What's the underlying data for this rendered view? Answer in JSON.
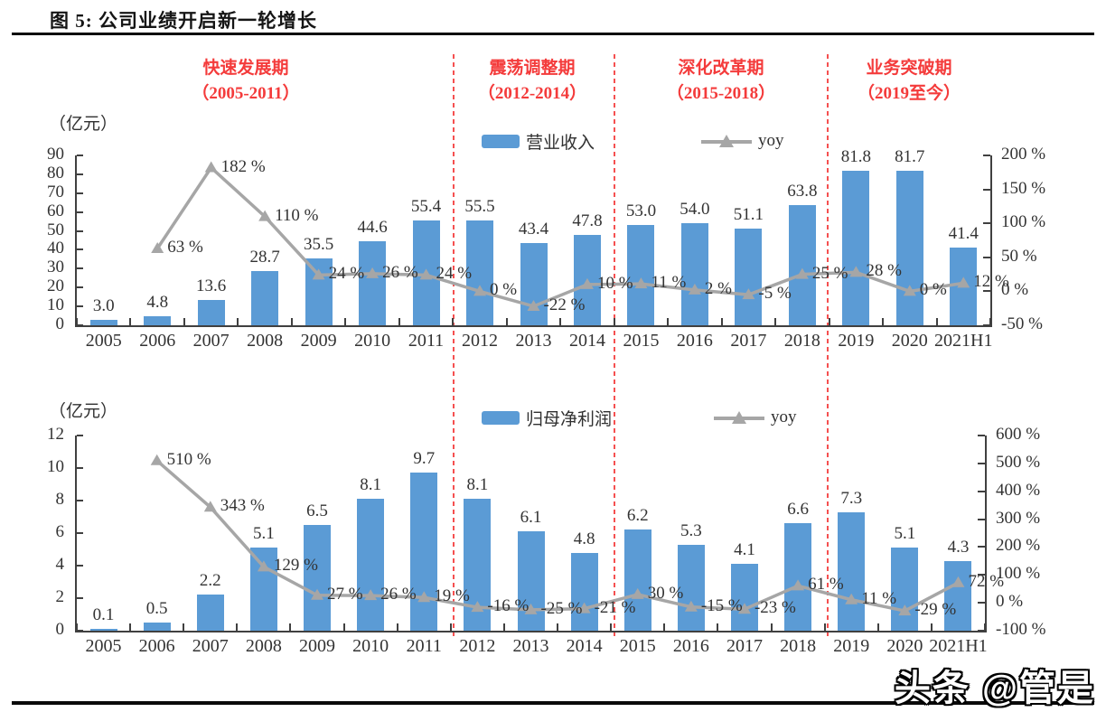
{
  "page": {
    "title": "图 5: 公司业绩开启新一轮增长",
    "watermark": "头条 @管是"
  },
  "phases": [
    {
      "name": "快速发展期",
      "range": "（2005-2011）"
    },
    {
      "name": "震荡调整期",
      "range": "（2012-2014）"
    },
    {
      "name": "深化改革期",
      "range": "（2015-2018）"
    },
    {
      "name": "业务突破期",
      "range": "（2019至今）"
    }
  ],
  "colors": {
    "bar": "#5B9BD5",
    "line": "#A6A6A6",
    "phase_red": "#F43B3B",
    "axis": "#404040",
    "label_text": "#333333"
  },
  "chart_data": [
    {
      "id": "revenue-chart",
      "type": "bar",
      "unit_label": "（亿元）",
      "categories": [
        "2005",
        "2006",
        "2007",
        "2008",
        "2009",
        "2010",
        "2011",
        "2012",
        "2013",
        "2014",
        "2015",
        "2016",
        "2017",
        "2018",
        "2019",
        "2020",
        "2021H1"
      ],
      "series": [
        {
          "name": "营业收入",
          "type": "bar",
          "values": [
            3.0,
            4.8,
            13.6,
            28.7,
            35.5,
            44.6,
            55.4,
            55.5,
            43.4,
            47.8,
            53.0,
            54.0,
            51.1,
            63.8,
            81.8,
            81.7,
            41.4
          ],
          "labels": [
            "3.0",
            "4.8",
            "13.6",
            "28.7",
            "35.5",
            "44.6",
            "55.4",
            "55.5",
            "43.4",
            "47.8",
            "53.0",
            "54.0",
            "51.1",
            "63.8",
            "81.8",
            "81.7",
            "41.4"
          ]
        },
        {
          "name": "yoy",
          "type": "line",
          "values_pct": [
            null,
            63,
            182,
            110,
            24,
            26,
            24,
            0,
            -22,
            10,
            11,
            2,
            -5,
            25,
            28,
            0,
            12
          ],
          "labels": [
            "",
            "63 %",
            "182 %",
            "110 %",
            "24 %",
            "26 %",
            "24 %",
            "0 %",
            "-22 %",
            "10 %",
            "11 %",
            "2 %",
            "-5 %",
            "25 %",
            "28 %",
            "0 %",
            "12 %"
          ]
        }
      ],
      "left_axis": {
        "min": 0,
        "max": 90,
        "ticks": [
          0,
          10,
          20,
          30,
          40,
          50,
          60,
          70,
          80,
          90
        ]
      },
      "right_axis": {
        "min": -50,
        "max": 200,
        "tick_labels": [
          "200 %",
          "150 %",
          "100 %",
          "50 %",
          "0 %",
          "-50 %"
        ]
      },
      "grid": false,
      "legend_position": "top-center"
    },
    {
      "id": "net-profit-chart",
      "type": "bar",
      "unit_label": "（亿元）",
      "categories": [
        "2005",
        "2006",
        "2007",
        "2008",
        "2009",
        "2010",
        "2011",
        "2012",
        "2013",
        "2014",
        "2015",
        "2016",
        "2017",
        "2018",
        "2019",
        "2020",
        "2021H1"
      ],
      "series": [
        {
          "name": "归母净利润",
          "type": "bar",
          "values": [
            0.1,
            0.5,
            2.2,
            5.1,
            6.5,
            8.1,
            9.7,
            8.1,
            6.1,
            4.8,
            6.2,
            5.3,
            4.1,
            6.6,
            7.3,
            5.1,
            4.3
          ],
          "labels": [
            "0.1",
            "0.5",
            "2.2",
            "5.1",
            "6.5",
            "8.1",
            "9.7",
            "8.1",
            "6.1",
            "4.8",
            "6.2",
            "5.3",
            "4.1",
            "6.6",
            "7.3",
            "5.1",
            "4.3"
          ]
        },
        {
          "name": "yoy",
          "type": "line",
          "values_pct": [
            null,
            510,
            343,
            129,
            27,
            26,
            19,
            -16,
            -25,
            -21,
            30,
            -15,
            -23,
            61,
            11,
            -29,
            72
          ],
          "labels": [
            "",
            "510 %",
            "343 %",
            "129 %",
            "27 %",
            "26 %",
            "19 %",
            "-16 %",
            "-25 %",
            "-21 %",
            "30 %",
            "-15 %",
            "-23 %",
            "61 %",
            "11 %",
            "-29 %",
            "72 %"
          ]
        }
      ],
      "left_axis": {
        "min": 0,
        "max": 12,
        "ticks": [
          0,
          2,
          4,
          6,
          8,
          10,
          12
        ]
      },
      "right_axis": {
        "min": -100,
        "max": 600,
        "tick_labels": [
          "600 %",
          "500 %",
          "400 %",
          "300 %",
          "200 %",
          "100 %",
          "0 %",
          "-100 %"
        ]
      },
      "grid": false,
      "legend_position": "top-center"
    }
  ]
}
